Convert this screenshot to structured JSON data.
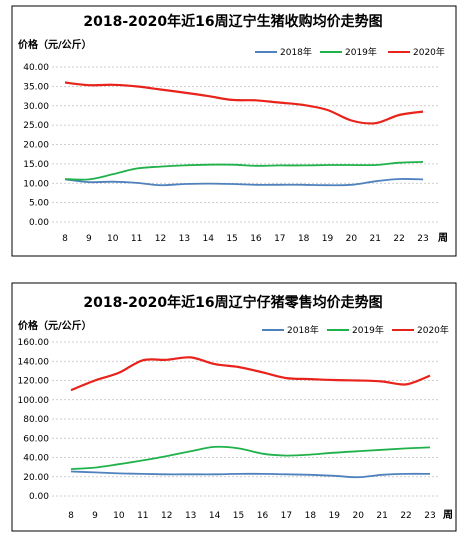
{
  "chart_data": [
    {
      "type": "line",
      "title": "2018-2020年近16周辽宁生猪收购均价走势图",
      "ylabel": "价格（元/公斤）",
      "xlabel": "周",
      "categories": [
        "8",
        "9",
        "10",
        "11",
        "12",
        "13",
        "14",
        "15",
        "16",
        "17",
        "18",
        "19",
        "20",
        "21",
        "22",
        "23"
      ],
      "ylim": [
        0,
        40
      ],
      "yticks": [
        "0.00",
        "5.00",
        "10.00",
        "15.00",
        "20.00",
        "25.00",
        "30.00",
        "35.00",
        "40.00"
      ],
      "grid": true,
      "legend": "top-right",
      "series": [
        {
          "name": "2018年",
          "color": "#4f81bd",
          "values": [
            11.0,
            10.3,
            10.4,
            10.1,
            9.5,
            9.8,
            9.9,
            9.8,
            9.6,
            9.6,
            9.6,
            9.5,
            9.6,
            10.5,
            11.1,
            11.0
          ]
        },
        {
          "name": "2019年",
          "color": "#1fb24a",
          "values": [
            11.1,
            11.0,
            12.3,
            13.8,
            14.3,
            14.6,
            14.8,
            14.8,
            14.5,
            14.6,
            14.6,
            14.7,
            14.7,
            14.7,
            15.3,
            15.5
          ]
        },
        {
          "name": "2020年",
          "color": "#e8231b",
          "values": [
            36.0,
            35.3,
            35.4,
            35.0,
            34.2,
            33.4,
            32.5,
            31.5,
            31.4,
            30.8,
            30.2,
            28.9,
            26.2,
            25.5,
            27.6,
            28.5
          ]
        }
      ]
    },
    {
      "type": "line",
      "title": "2018-2020年近16周辽宁仔猪零售均价走势图",
      "ylabel": "价格（元/公斤）",
      "xlabel": "周",
      "categories": [
        "8",
        "9",
        "10",
        "11",
        "12",
        "13",
        "14",
        "15",
        "16",
        "17",
        "18",
        "19",
        "20",
        "21",
        "22",
        "23"
      ],
      "ylim": [
        0,
        160
      ],
      "yticks": [
        "0.00",
        "20.00",
        "40.00",
        "60.00",
        "80.00",
        "100.00",
        "120.00",
        "140.00",
        "160.00"
      ],
      "grid": true,
      "legend": "top-right",
      "series": [
        {
          "name": "2018年",
          "color": "#4f81bd",
          "values": [
            25.5,
            24.5,
            23.5,
            23.0,
            22.5,
            22.5,
            22.5,
            23.0,
            23.0,
            22.5,
            22.0,
            21.0,
            19.5,
            22.0,
            23.0,
            23.0
          ]
        },
        {
          "name": "2019年",
          "color": "#1fb24a",
          "values": [
            28.0,
            29.5,
            33.0,
            37.0,
            41.5,
            46.5,
            51.0,
            49.5,
            44.0,
            42.0,
            43.0,
            45.0,
            46.5,
            48.0,
            49.5,
            50.5
          ]
        },
        {
          "name": "2020年",
          "color": "#e8231b",
          "values": [
            110.0,
            120.0,
            128.0,
            141.0,
            141.5,
            144.0,
            137.0,
            134.0,
            128.5,
            122.5,
            121.5,
            120.5,
            120.0,
            119.0,
            116.0,
            125.0
          ]
        }
      ]
    }
  ]
}
